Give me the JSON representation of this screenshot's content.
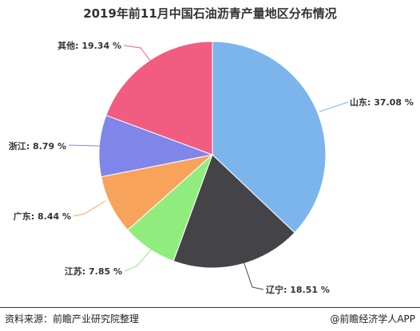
{
  "chart_data": {
    "type": "pie",
    "title": "2019年前11月中国石油沥青产量地区分布情况",
    "slices": [
      {
        "label": "山东",
        "value": 37.08,
        "display": "山东: 37.08 %",
        "color": "#7cb5ec"
      },
      {
        "label": "辽宁",
        "value": 18.51,
        "display": "辽宁: 18.51 %",
        "color": "#434348"
      },
      {
        "label": "江苏",
        "value": 7.85,
        "display": "江苏: 7.85 %",
        "color": "#90ed7d"
      },
      {
        "label": "广东",
        "value": 8.44,
        "display": "广东: 8.44 %",
        "color": "#f7a35c"
      },
      {
        "label": "浙江",
        "value": 8.79,
        "display": "浙江: 8.79 %",
        "color": "#8085e9"
      },
      {
        "label": "其他",
        "value": 19.34,
        "display": "其他: 19.34 %",
        "color": "#f15c80"
      }
    ],
    "legend": "none",
    "start_angle": "12 o'clock",
    "direction": "clockwise"
  },
  "footer": {
    "source": "资料来源：前瞻产业研究院整理",
    "brand": "@前瞻经济学人APP"
  }
}
